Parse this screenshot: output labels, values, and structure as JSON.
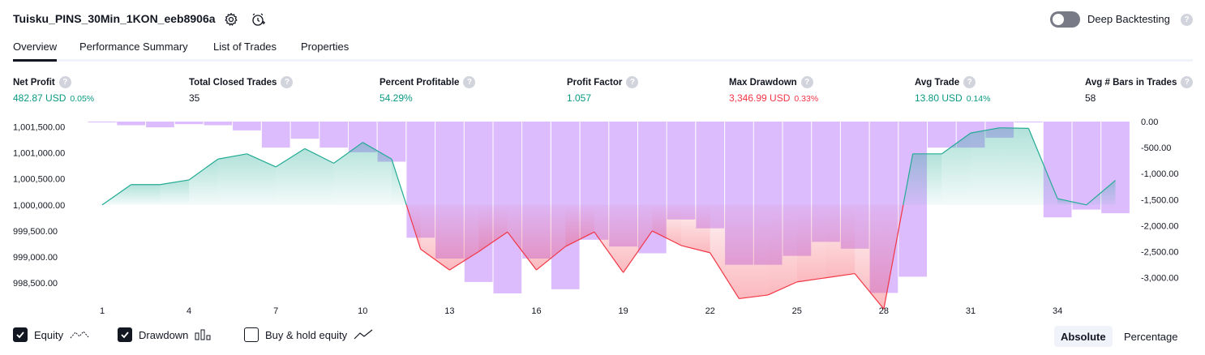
{
  "header": {
    "title": "Tuisku_PINS_30Min_1KON_eeb8906a",
    "deep_backtesting_label": "Deep Backtesting",
    "deep_backtesting_on": false,
    "help_glyph": "?"
  },
  "tabs": [
    {
      "label": "Overview",
      "active": true
    },
    {
      "label": "Performance Summary",
      "active": false
    },
    {
      "label": "List of Trades",
      "active": false
    },
    {
      "label": "Properties",
      "active": false
    }
  ],
  "metrics": {
    "net_profit": {
      "label": "Net Profit",
      "value": "482.87 USD",
      "pct": "0.05%"
    },
    "total_closed_trades": {
      "label": "Total Closed Trades",
      "value": "35"
    },
    "percent_profitable": {
      "label": "Percent Profitable",
      "value": "54.29%"
    },
    "profit_factor": {
      "label": "Profit Factor",
      "value": "1.057"
    },
    "max_drawdown": {
      "label": "Max Drawdown",
      "value": "3,346.99 USD",
      "pct": "0.33%"
    },
    "avg_trade": {
      "label": "Avg Trade",
      "value": "13.80 USD",
      "pct": "0.14%"
    },
    "avg_bars": {
      "label": "Avg # Bars in Trades",
      "value": "58"
    }
  },
  "colors": {
    "positive": "#089981",
    "negative": "#f23645",
    "drawdown_bar": "#dcbcfd",
    "equity_line_pos": "#22ab94",
    "equity_line_neg": "#f23645"
  },
  "chart_data": {
    "type": "line",
    "x": [
      1,
      2,
      3,
      4,
      5,
      6,
      7,
      8,
      9,
      10,
      11,
      12,
      13,
      14,
      15,
      16,
      17,
      18,
      19,
      20,
      21,
      22,
      23,
      24,
      25,
      26,
      27,
      28,
      29,
      30,
      31,
      32,
      33,
      34,
      35,
      36
    ],
    "x_ticks": [
      "1",
      "4",
      "7",
      "10",
      "13",
      "16",
      "19",
      "22",
      "25",
      "28",
      "31",
      "34"
    ],
    "y_left_ticks": [
      "1,001,500.00",
      "1,001,000.00",
      "1,000,500.00",
      "1,000,000.00",
      "999,500.00",
      "999,000.00",
      "998,500.00"
    ],
    "y_right_ticks": [
      "0.00",
      "-500.00",
      "-1,000.00",
      "-1,500.00",
      "-2,000.00",
      "-2,500.00",
      "-3,000.00"
    ],
    "y_left_range": [
      998300,
      1001600
    ],
    "y_right_range": [
      -3300,
      0
    ],
    "baseline": 1000000,
    "series": [
      {
        "name": "Equity",
        "values": [
          1000000,
          1000390,
          1000390,
          1000480,
          1000880,
          1000980,
          1000730,
          1001080,
          1000800,
          1001200,
          1000880,
          999150,
          998750,
          999100,
          999480,
          998750,
          999200,
          999480,
          998700,
          999500,
          999220,
          999080,
          998200,
          998270,
          998520,
          998600,
          998680,
          998000,
          1000980,
          1000980,
          1001380,
          1001480,
          1001470,
          1000120,
          1000000,
          1000470
        ]
      },
      {
        "name": "Drawdown",
        "values": [
          -10,
          -70,
          -110,
          -50,
          -70,
          -170,
          -500,
          -330,
          -500,
          -590,
          -770,
          -2230,
          -2630,
          -3080,
          -3300,
          -2630,
          -3220,
          -2270,
          -2400,
          -2530,
          -1880,
          -2050,
          -2750,
          -2750,
          -2580,
          -2310,
          -2440,
          -3290,
          -2980,
          -500,
          -500,
          -310,
          0,
          -1840,
          -1690,
          -1760
        ]
      }
    ]
  },
  "footer": {
    "equity_label": "Equity",
    "equity_checked": true,
    "drawdown_label": "Drawdown",
    "drawdown_checked": true,
    "buyhold_label": "Buy & hold equity",
    "buyhold_checked": false,
    "absolute_label": "Absolute",
    "percentage_label": "Percentage",
    "active_mode": "Absolute"
  }
}
